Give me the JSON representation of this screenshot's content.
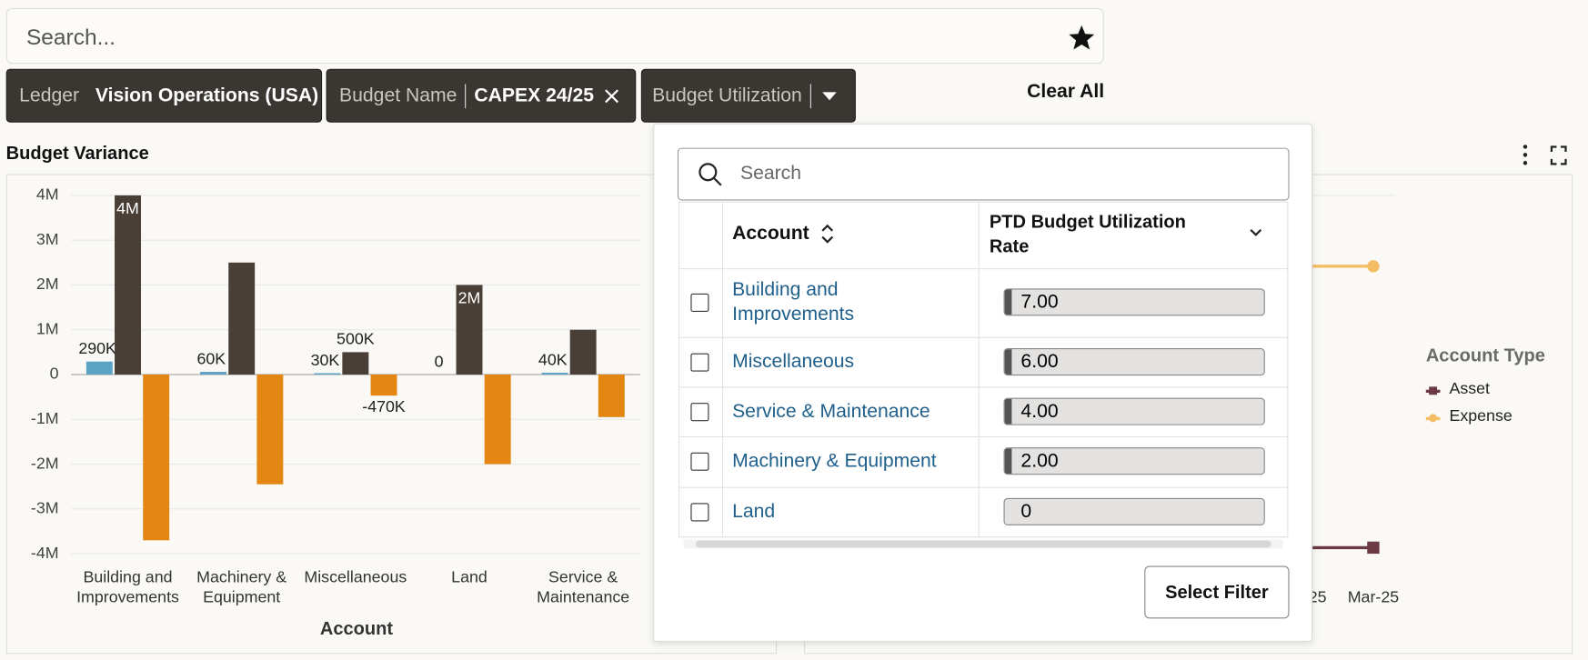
{
  "search": {
    "placeholder": "Search..."
  },
  "filters": [
    {
      "label": "Ledger",
      "value": "Vision Operations (USA)"
    },
    {
      "label": "Budget Name",
      "value": "CAPEX 24/25"
    },
    {
      "label": "Budget Utilization"
    }
  ],
  "clear_all": "Clear All",
  "chart_data": {
    "type": "bar",
    "title": "Budget Variance",
    "x_label": "Account",
    "categories": [
      "Building and Improvements",
      "Machinery & Equipment",
      "Miscellaneous",
      "Land",
      "Service & Maintenance"
    ],
    "series": [
      {
        "color": "#5ba3c5",
        "values": [
          290000,
          60000,
          30000,
          0,
          40000
        ],
        "value_labels": [
          "290K",
          "60K",
          "30K",
          "0",
          "40K"
        ]
      },
      {
        "color": "#4a3f37",
        "values": [
          4000000,
          2500000,
          500000,
          2000000,
          1000000
        ],
        "value_labels": [
          "4M",
          null,
          "500K",
          "2M",
          null
        ]
      },
      {
        "color": "#e38712",
        "values": [
          -3700000,
          -2450000,
          -470000,
          -2000000,
          -950000
        ],
        "value_labels": [
          null,
          null,
          "-470K",
          null,
          null
        ]
      }
    ],
    "ylim": [
      -4000000,
      4000000
    ],
    "yticks": [
      {
        "value": 4000000,
        "label": "4M"
      },
      {
        "value": 3000000,
        "label": "3M"
      },
      {
        "value": 2000000,
        "label": "2M"
      },
      {
        "value": 1000000,
        "label": "1M"
      },
      0,
      {
        "value": -1000000,
        "label": "-1M"
      },
      {
        "value": -2000000,
        "label": "-2M"
      },
      {
        "value": -3000000,
        "label": "-3M"
      },
      {
        "value": -4000000,
        "label": "-4M"
      }
    ],
    "grid": true
  },
  "trend_chart": {
    "x_tick_labels": [
      "25",
      "Mar-25"
    ],
    "legend_title": "Account Type",
    "legend": [
      {
        "name": "Asset",
        "color": "#6b3a44"
      },
      {
        "name": "Expense",
        "color": "#f5bd63"
      }
    ]
  },
  "dropdown": {
    "search_placeholder": "Search",
    "columns": [
      "Account",
      "PTD Budget Utilization Rate"
    ],
    "rows": [
      [
        "Building and Improvements",
        "7.00"
      ],
      [
        "Miscellaneous",
        "6.00"
      ],
      [
        "Service & Maintenance",
        "4.00"
      ],
      [
        "Machinery & Equipment",
        "2.00"
      ],
      [
        "Land",
        "0"
      ]
    ],
    "button": "Select Filter"
  }
}
